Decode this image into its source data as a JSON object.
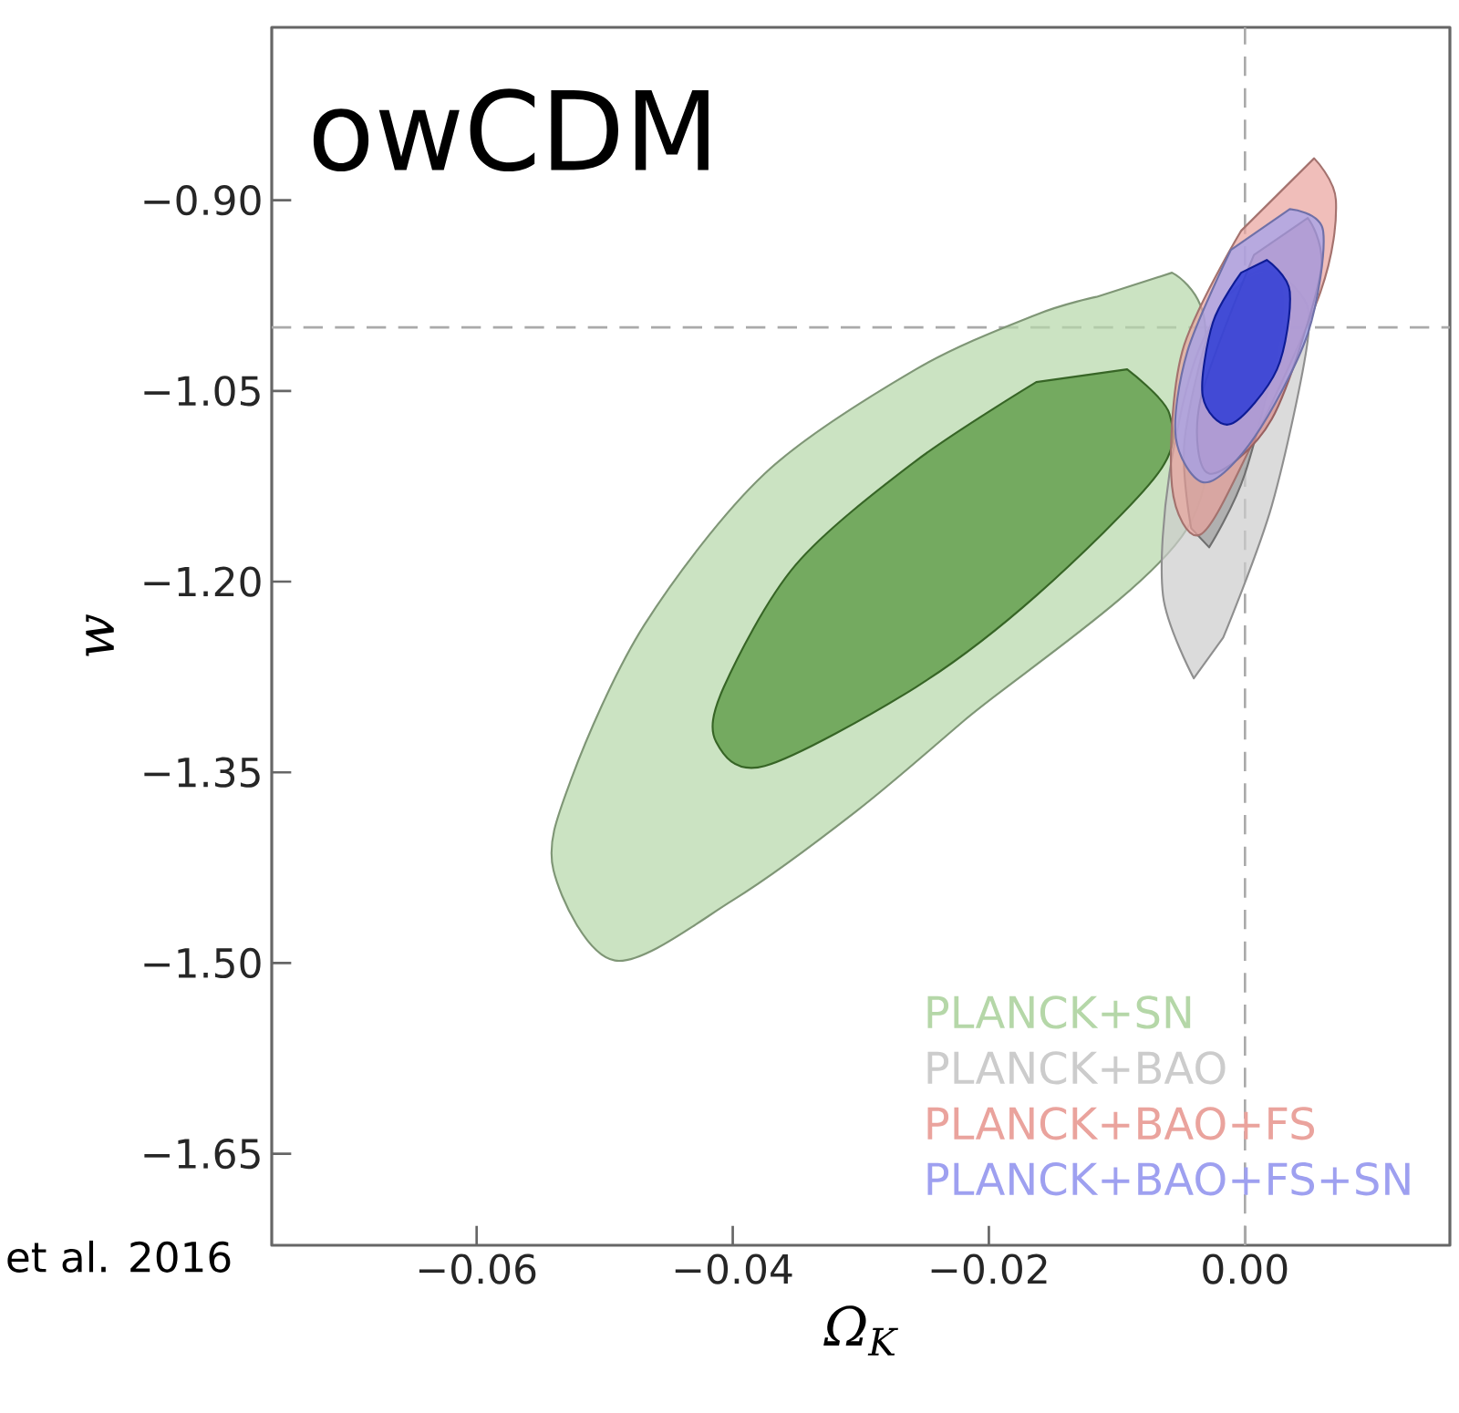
{
  "chart_data": {
    "type": "area",
    "title": "owCDM",
    "xlabel": "Ω$_{K}$",
    "ylabel": "w",
    "xlim": [
      -0.076,
      0.016
    ],
    "ylim": [
      -1.722,
      -0.764
    ],
    "xticks": [
      {
        "value": -0.06,
        "label": "−0.06"
      },
      {
        "value": -0.04,
        "label": "−0.04"
      },
      {
        "value": -0.02,
        "label": "−0.02"
      },
      {
        "value": 0,
        "label": "0.00"
      }
    ],
    "yticks": [
      {
        "value": -0.9,
        "label": "−0.90"
      },
      {
        "value": -1.05,
        "label": "−1.05"
      },
      {
        "value": -1.2,
        "label": "−1.20"
      },
      {
        "value": -1.35,
        "label": "−1.35"
      },
      {
        "value": -1.5,
        "label": "−1.50"
      },
      {
        "value": -1.65,
        "label": "−1.65"
      }
    ],
    "legend": "bottom right",
    "grid": false,
    "marker": "none",
    "ref_lines": [
      {
        "axis": "x",
        "value": 0,
        "color": "#aaaaaa",
        "line_style": "dashed"
      },
      {
        "axis": "y",
        "value": -1.0,
        "color": "#aaaaaa",
        "line_style": "dashed"
      }
    ],
    "annotations": [
      "et al. 2016"
    ],
    "series": [
      {
        "name": "PLANCK+SN",
        "color": "#b5d7a8",
        "x": [
          -0.0057,
          -0.0031,
          -0.0045,
          -0.0219,
          -0.0304,
          -0.0399,
          -0.0492,
          -0.054,
          -0.0526,
          -0.0469,
          -0.0375,
          -0.0257,
          -0.0163,
          -0.0116
        ],
        "values": [
          -0.957,
          -1.0,
          -1.158,
          -1.309,
          -1.381,
          -1.45,
          -1.498,
          -1.427,
          -1.355,
          -1.234,
          -1.115,
          -1.033,
          -0.99,
          -0.976
        ]
      },
      {
        "color": "#4f9136",
        "x": [
          -0.0092,
          -0.0059,
          -0.0068,
          -0.0163,
          -0.0257,
          -0.0375,
          -0.0413,
          -0.0407,
          -0.0351,
          -0.0257,
          -0.0163
        ],
        "values": [
          -1.033,
          -1.068,
          -1.115,
          -1.211,
          -1.283,
          -1.345,
          -1.326,
          -1.283,
          -1.187,
          -1.105,
          -1.043
        ]
      },
      {
        "name": "PLANCK+BAO",
        "color": "#cccccc",
        "x": [
          -0.004,
          -0.0064,
          -0.0059,
          -0.0035,
          0.0007,
          0.0042,
          0.0049,
          0.0021,
          -0.0017
        ],
        "values": [
          -1.276,
          -1.211,
          -1.115,
          -1.015,
          -0.957,
          -0.972,
          -1.01,
          -1.14,
          -1.244
        ]
      },
      {
        "color": "#9e9e9e",
        "x": [
          -0.0042,
          -0.0047,
          -0.0021,
          0.0021,
          0.0028,
          0.0,
          -0.0028
        ],
        "values": [
          -1.158,
          -1.087,
          -0.986,
          -0.957,
          -1.0,
          -1.115,
          -1.173
        ]
      },
      {
        "name": "PLANCK+BAO+FS",
        "color": "#eaa39d",
        "x": [
          0.0054,
          0.0071,
          0.0059,
          0.0003,
          -0.0035,
          -0.0057,
          -0.0049,
          -0.0003
        ],
        "values": [
          -0.867,
          -0.9,
          -0.972,
          -1.097,
          -1.163,
          -1.125,
          -1.019,
          -0.924
        ]
      },
      {
        "color": "#d98a8a",
        "x": [
          0.0049,
          0.0059,
          0.0021,
          -0.0028,
          -0.0035,
          0.0007
        ],
        "values": [
          -0.914,
          -0.957,
          -1.072,
          -1.115,
          -1.058,
          -0.943
        ]
      },
      {
        "name": "PLANCK+BAO+FS+SN",
        "color": "#9ea0f0",
        "x": [
          0.0035,
          0.0061,
          0.0049,
          0.0007,
          -0.0031,
          -0.0054,
          -0.0045,
          -0.0011
        ],
        "values": [
          -0.907,
          -0.924,
          -1.005,
          -1.087,
          -1.122,
          -1.087,
          -1.019,
          -0.939
        ]
      },
      {
        "color": "#1428d6",
        "x": [
          0.0017,
          0.0035,
          0.0025,
          -0.0011,
          -0.0033,
          -0.0025,
          -0.0003
        ],
        "values": [
          -0.947,
          -0.972,
          -1.033,
          -1.076,
          -1.054,
          -0.996,
          -0.957
        ]
      }
    ]
  }
}
